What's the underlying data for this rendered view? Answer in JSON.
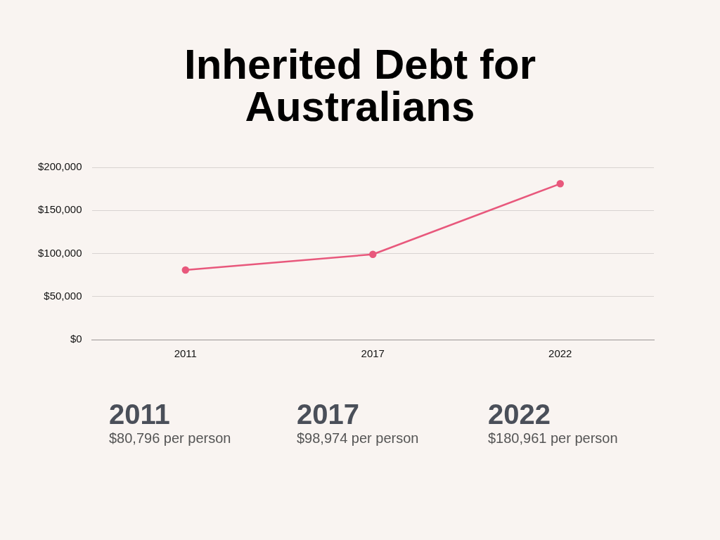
{
  "chart_data": {
    "type": "line",
    "title": "Inherited Debt for Australians",
    "categories": [
      "2011",
      "2017",
      "2022"
    ],
    "series": [
      {
        "color": "#e8587c",
        "values": [
          80796,
          98974,
          180961
        ]
      }
    ],
    "ylim": [
      0,
      200000
    ],
    "yticks": [
      {
        "value": 0,
        "label": "$0"
      },
      {
        "value": 50000,
        "label": "$50,000"
      },
      {
        "value": 100000,
        "label": "$100,000"
      },
      {
        "value": 150000,
        "label": "$150,000"
      },
      {
        "value": 200000,
        "label": "$200,000"
      }
    ],
    "grid": "y",
    "legend": false,
    "marker": "circle",
    "line_style": "solid",
    "annotations": [
      "2011",
      "$80,796 per person",
      "2017",
      "$98,974 per person",
      "2022",
      "$180,961 per person"
    ]
  }
}
